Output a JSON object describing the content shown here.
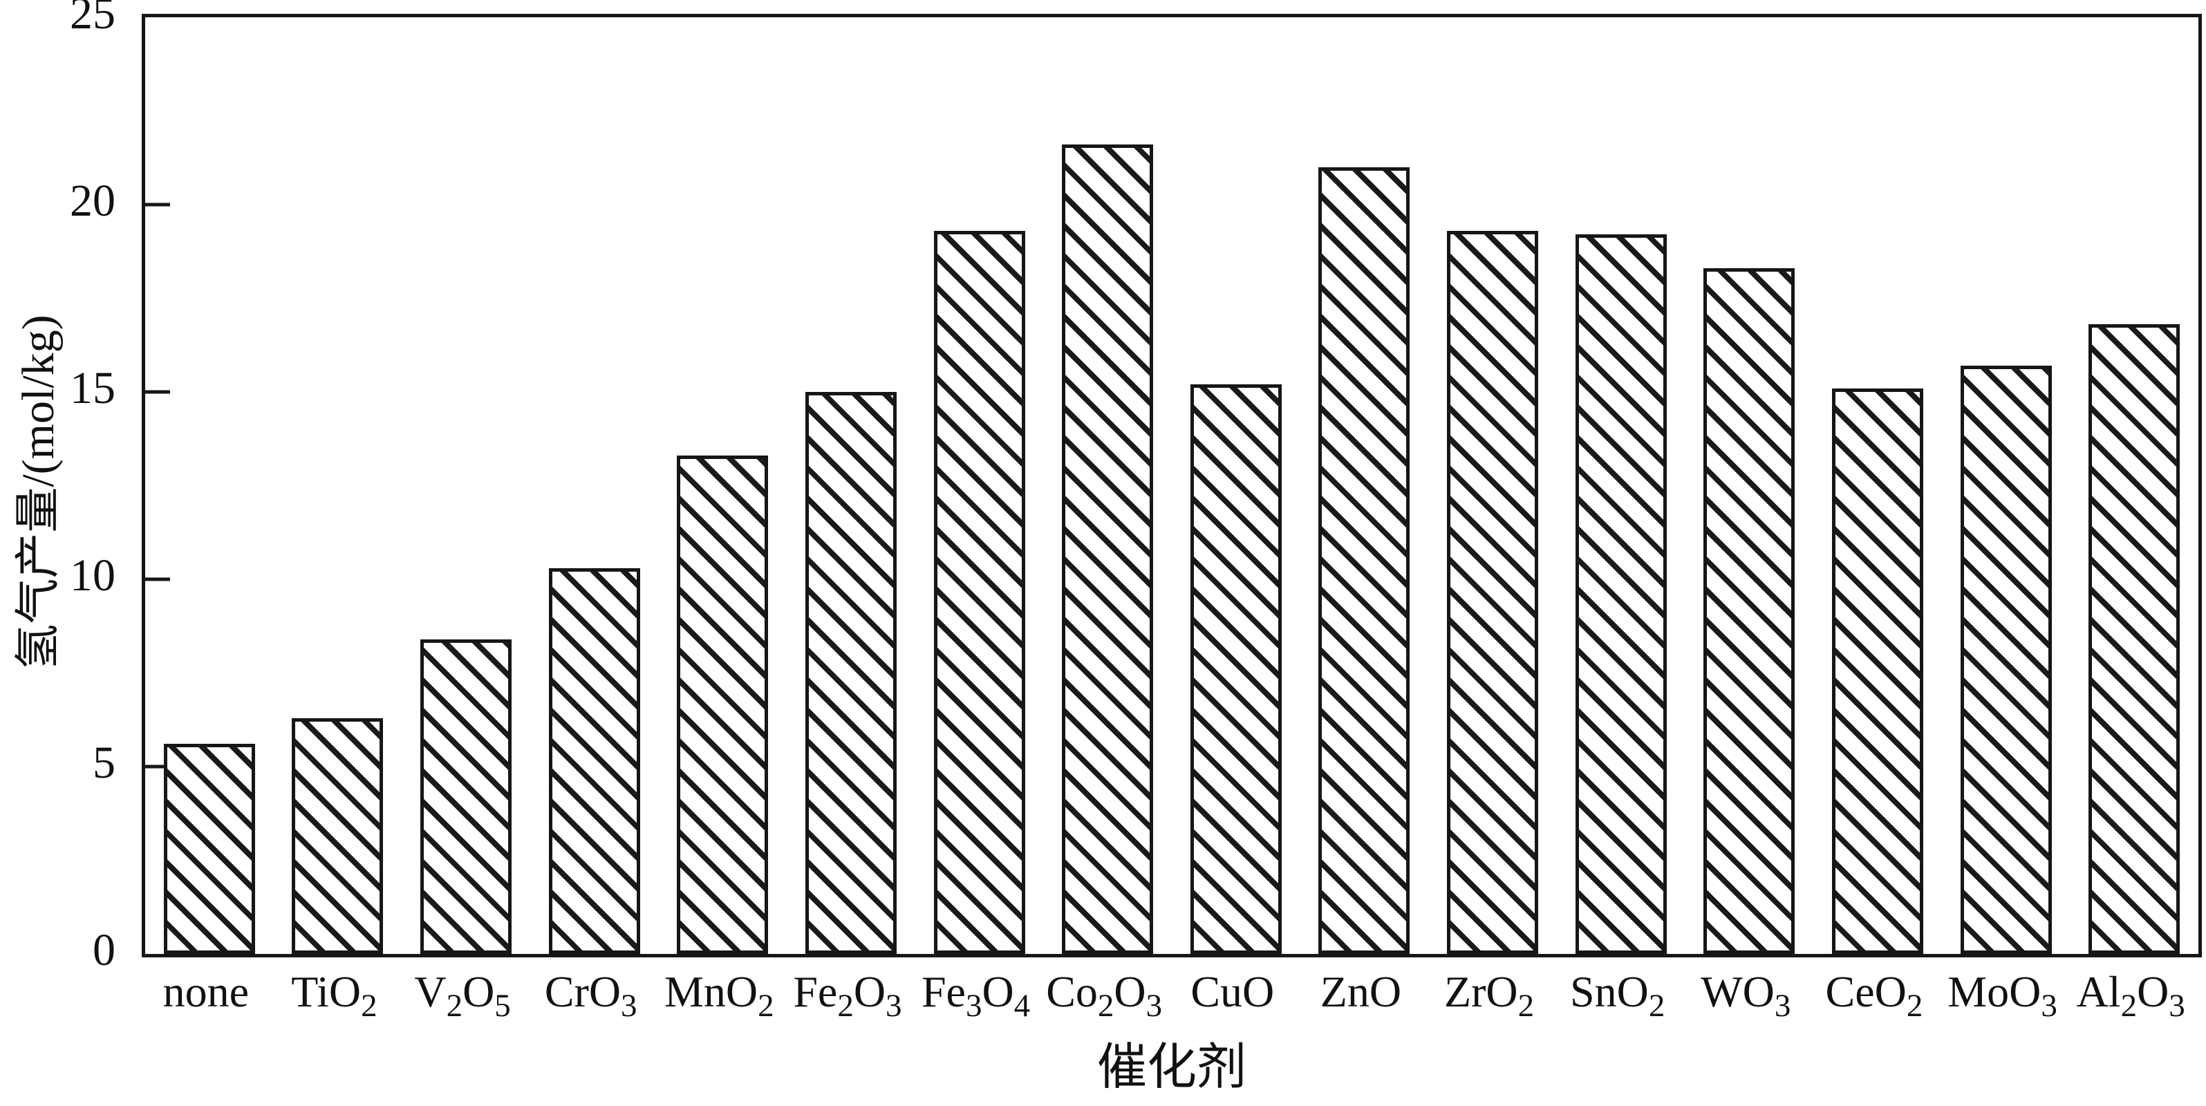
{
  "chart_data": {
    "type": "bar",
    "title": "",
    "xlabel": "催化剂",
    "ylabel": "氢气产量/(mol/kg)",
    "categories": [
      "none",
      "TiO_2",
      "V_2O_5",
      "CrO_3",
      "MnO_2",
      "Fe_2O_3",
      "Fe_3O_4",
      "Co_2O_3",
      "CuO",
      "ZnO",
      "ZrO_2",
      "SnO_2",
      "WO_3",
      "CeO_2",
      "MoO_3",
      "Al_2O_3"
    ],
    "values": [
      5.6,
      6.3,
      8.4,
      10.3,
      13.3,
      15.0,
      19.3,
      21.6,
      15.2,
      21.0,
      19.3,
      19.2,
      18.3,
      15.1,
      15.7,
      16.8
    ],
    "ylim": [
      0,
      25
    ],
    "yticks": [
      0,
      5,
      10,
      15,
      20,
      25
    ],
    "grid": false,
    "legend_position": "none",
    "bar_fill": "#ffffff",
    "bar_hatch": "diagonal-down",
    "line_color": "#161616"
  }
}
